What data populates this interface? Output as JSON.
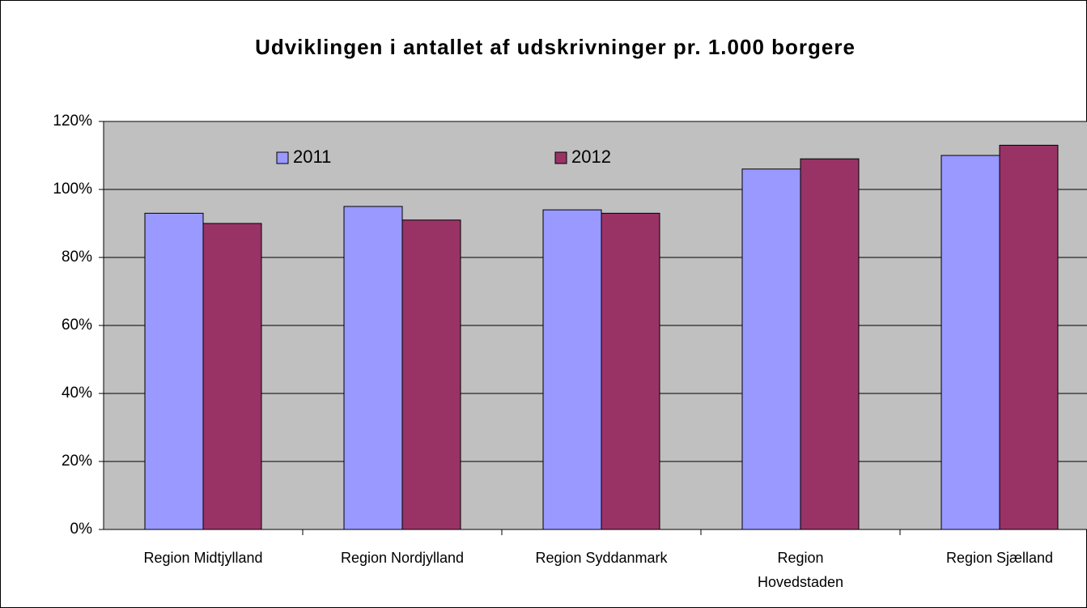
{
  "chart_data": {
    "type": "bar",
    "title": "Udviklingen i antallet af udskrivninger pr. 1.000 borgere",
    "categories": [
      "Region Midtjylland",
      "Region Nordjylland",
      "Region Syddanmark",
      "Region Hovedstaden",
      "Region Sjælland"
    ],
    "series": [
      {
        "name": "2011",
        "color": "#9999ff",
        "values": [
          93,
          95,
          94,
          106,
          110
        ]
      },
      {
        "name": "2012",
        "color": "#993366",
        "values": [
          90,
          91,
          93,
          109,
          113
        ]
      }
    ],
    "ylim": [
      0,
      120
    ],
    "yticks": [
      {
        "value": 0,
        "label": "0%"
      },
      {
        "value": 20,
        "label": "20%"
      },
      {
        "value": 40,
        "label": "40%"
      },
      {
        "value": 60,
        "label": "60%"
      },
      {
        "value": 80,
        "label": "80%"
      },
      {
        "value": 100,
        "label": "100%"
      },
      {
        "value": 120,
        "label": "120%"
      }
    ],
    "grid": true,
    "legend": "top"
  }
}
